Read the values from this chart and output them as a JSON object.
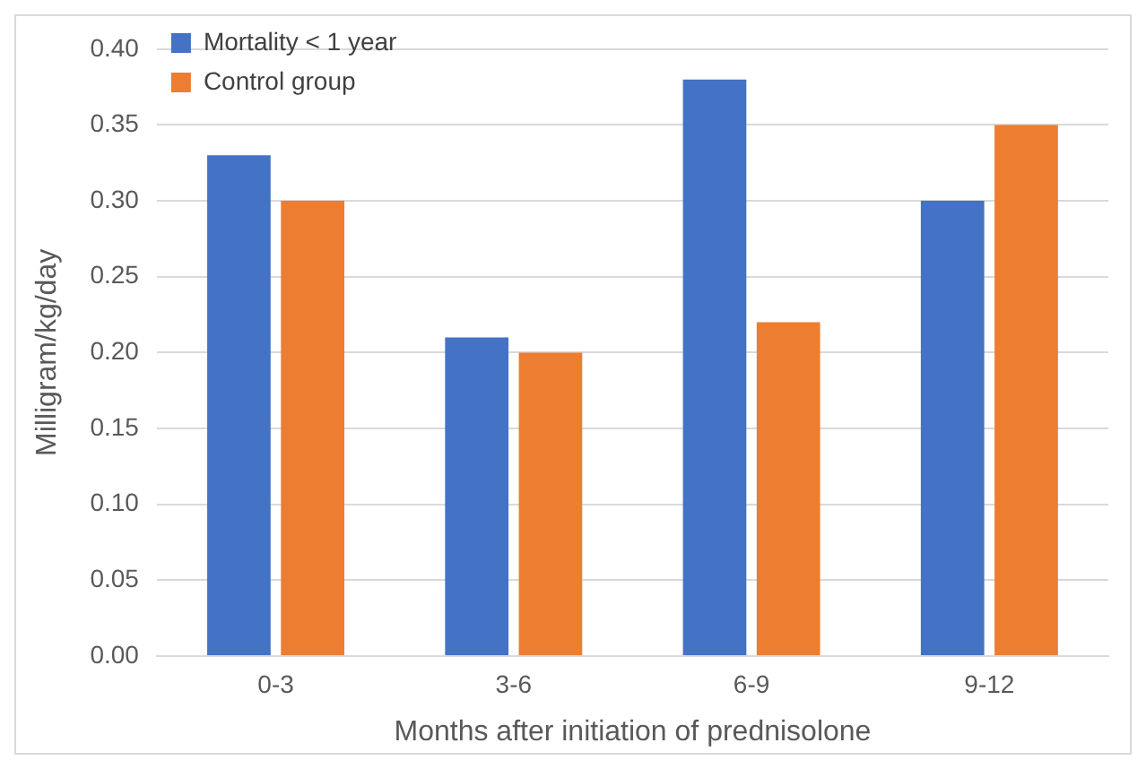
{
  "chart_data": {
    "type": "bar",
    "xlabel": "Months after initiation of prednisolone",
    "ylabel": "Milligram/kg/day",
    "categories": [
      "0-3",
      "3-6",
      "6-9",
      "9-12"
    ],
    "series": [
      {
        "name": "Mortality < 1 year",
        "color": "#4472c4",
        "values": [
          0.33,
          0.21,
          0.38,
          0.3
        ]
      },
      {
        "name": "Control group",
        "color": "#ed7d31",
        "values": [
          0.3,
          0.2,
          0.22,
          0.35
        ]
      }
    ],
    "ylim": [
      0,
      0.4
    ],
    "yticks": [
      {
        "value": 0,
        "label": "0.00"
      },
      {
        "value": 0.05,
        "label": "0.05"
      },
      {
        "value": 0.1,
        "label": "0.10"
      },
      {
        "value": 0.15,
        "label": "0.15"
      },
      {
        "value": 0.2,
        "label": "0.20"
      },
      {
        "value": 0.25,
        "label": "0.25"
      },
      {
        "value": 0.3,
        "label": "0.30"
      },
      {
        "value": 0.35,
        "label": "0.35"
      },
      {
        "value": 0.4,
        "label": "0.40"
      }
    ],
    "grid": "y",
    "legend": "top left"
  }
}
